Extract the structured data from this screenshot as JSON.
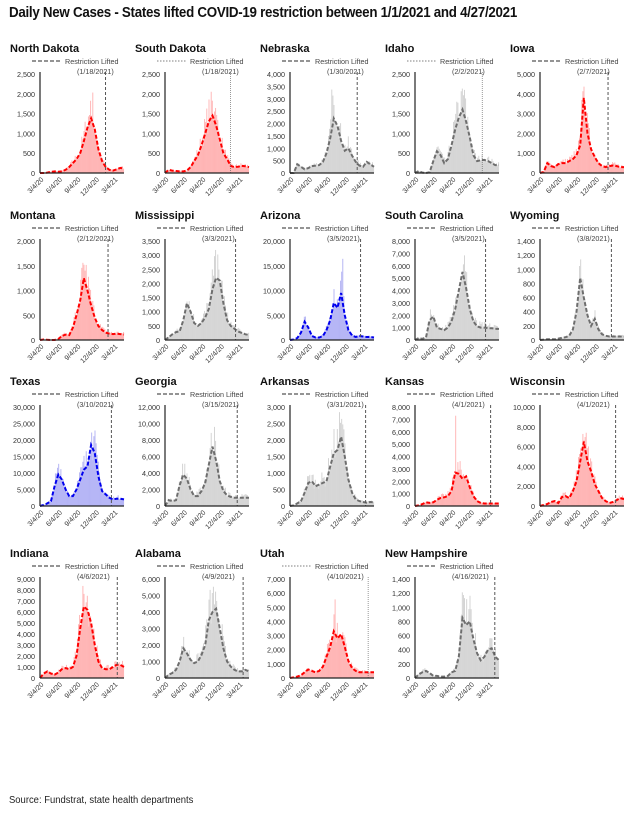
{
  "page": {
    "title": "Daily New Cases -  States lifted COVID-19 restriction between 1/1/2021 and 4/27/2021",
    "source": "Source: Fundstrat, state health departments"
  },
  "colors": {
    "red_line": "#ff0000",
    "red_fill": "#ffb3b3",
    "red_bar": "#ff9d9d",
    "blue_line": "#0000ee",
    "blue_fill": "#b3b3f5",
    "blue_bar": "#9b9bf0",
    "gray_line": "#6e6e6e",
    "gray_fill": "#d6d6d6",
    "gray_bar": "#c4c4c4",
    "axis": "#222222",
    "restriction_line": "#555555"
  },
  "legend_label": "Restriction Lifted",
  "chart_data": [
    {
      "type": "area",
      "state": "North Dakota",
      "lifted": "(1/18/2021)",
      "color": "red",
      "ylim": [
        0,
        2500
      ],
      "yticks": [
        "2,500",
        "2,000",
        "1,500",
        "1,000",
        "500",
        "0"
      ],
      "xticks": [
        "3/4/20",
        "6/4/20",
        "9/4/20",
        "12/4/20",
        "3/4/21"
      ],
      "lift_frac": 0.78,
      "peak_spike": 2250,
      "series": [
        {
          "name": "7-day average",
          "values": [
            0,
            0,
            10,
            30,
            40,
            30,
            40,
            80,
            150,
            250,
            350,
            500,
            800,
            1150,
            1380,
            1100,
            600,
            300,
            150,
            80,
            60,
            90,
            130,
            110
          ]
        }
      ]
    },
    {
      "type": "area",
      "state": "South Dakota",
      "lifted": "(1/18/2021)",
      "color": "red",
      "ylim": [
        0,
        2500
      ],
      "yticks": [
        "2,500",
        "2,000",
        "1,500",
        "1,000",
        "500",
        "0"
      ],
      "xticks": [
        "3/4/20",
        "6/4/20",
        "9/4/20",
        "12/4/20",
        "3/4/21"
      ],
      "lift_frac": 0.78,
      "peak_spike": 2150,
      "series": [
        {
          "name": "7-day average",
          "values": [
            0,
            80,
            60,
            50,
            40,
            40,
            60,
            150,
            300,
            450,
            700,
            1000,
            1300,
            1450,
            1200,
            850,
            500,
            350,
            180,
            150,
            160,
            180,
            170,
            150
          ]
        }
      ]
    },
    {
      "type": "area",
      "state": "Nebraska",
      "lifted": "(1/30/2021)",
      "color": "gray",
      "ylim": [
        0,
        4000
      ],
      "yticks": [
        "4,000",
        "3,500",
        "3,000",
        "2,500",
        "2,000",
        "1,500",
        "1,000",
        "500",
        "0"
      ],
      "xticks": [
        "3/4/20",
        "6/4/20",
        "9/4/20",
        "12/4/20",
        "3/4/21"
      ],
      "lift_frac": 0.8,
      "peak_spike": 3400,
      "series": [
        {
          "name": "7-day average",
          "values": [
            0,
            0,
            350,
            250,
            150,
            200,
            280,
            300,
            320,
            450,
            800,
            1400,
            2200,
            1900,
            1300,
            900,
            1000,
            700,
            450,
            300,
            250,
            450,
            350,
            250
          ]
        }
      ]
    },
    {
      "type": "area",
      "state": "Idaho",
      "lifted": "(2/2/2021)",
      "color": "gray",
      "ylim": [
        0,
        2500
      ],
      "yticks": [
        "2,500",
        "2,000",
        "1,500",
        "1,000",
        "500",
        "0"
      ],
      "xticks": [
        "3/4/20",
        "6/4/20",
        "9/4/20",
        "12/4/20",
        "3/4/21"
      ],
      "lift_frac": 0.8,
      "peak_spike": 2300,
      "series": [
        {
          "name": "7-day average",
          "values": [
            0,
            50,
            10,
            0,
            20,
            300,
            550,
            450,
            250,
            350,
            700,
            1100,
            1400,
            1600,
            1300,
            900,
            450,
            300,
            320,
            330,
            300,
            250,
            200,
            200
          ]
        }
      ]
    },
    {
      "type": "area",
      "state": "Iowa",
      "lifted": "(2/7/2021)",
      "color": "red",
      "ylim": [
        0,
        5000
      ],
      "yticks": [
        "5,000",
        "4,000",
        "3,000",
        "2,000",
        "1,000",
        "0"
      ],
      "xticks": [
        "3/4/20",
        "6/4/20",
        "9/4/20",
        "12/4/20",
        "3/4/21"
      ],
      "lift_frac": 0.81,
      "peak_spike": 4400,
      "series": [
        {
          "name": "7-day average",
          "values": [
            0,
            50,
            500,
            350,
            300,
            450,
            500,
            500,
            600,
            700,
            900,
            1400,
            3800,
            2000,
            1200,
            800,
            500,
            350,
            300,
            350,
            380,
            350,
            300,
            300
          ]
        }
      ]
    },
    {
      "type": "area",
      "state": "Montana",
      "lifted": "(2/12/2021)",
      "color": "red",
      "ylim": [
        0,
        2000
      ],
      "yticks": [
        "2,000",
        "1,500",
        "1,000",
        "500",
        "0"
      ],
      "xticks": [
        "3/4/20",
        "6/4/20",
        "9/4/20",
        "12/4/20",
        "3/4/21"
      ],
      "lift_frac": 0.81,
      "peak_spike": 1620,
      "series": [
        {
          "name": "7-day average",
          "values": [
            0,
            10,
            5,
            0,
            0,
            20,
            80,
            110,
            100,
            250,
            500,
            800,
            1250,
            1000,
            700,
            450,
            280,
            200,
            150,
            130,
            120,
            130,
            120,
            110
          ]
        }
      ]
    },
    {
      "type": "area",
      "state": "Mississippi",
      "lifted": "(3/3/2021)",
      "color": "gray",
      "ylim": [
        0,
        3500
      ],
      "yticks": [
        "3,500",
        "3,000",
        "2,500",
        "2,000",
        "1,500",
        "1,000",
        "500",
        "0"
      ],
      "xticks": [
        "3/4/20",
        "6/4/20",
        "9/4/20",
        "12/4/20",
        "3/4/21"
      ],
      "lift_frac": 0.84,
      "peak_spike": 3200,
      "series": [
        {
          "name": "7-day average",
          "values": [
            0,
            100,
            200,
            280,
            300,
            700,
            1300,
            1000,
            600,
            500,
            600,
            800,
            1100,
            1800,
            2200,
            2100,
            1300,
            700,
            500,
            400,
            300,
            250,
            200,
            180
          ]
        }
      ]
    },
    {
      "type": "area",
      "state": "Arizona",
      "lifted": "(3/5/2021)",
      "color": "blue",
      "ylim": [
        0,
        20000
      ],
      "yticks": [
        "20,000",
        "15,000",
        "10,000",
        "5,000",
        "0"
      ],
      "xticks": [
        "3/4/20",
        "6/4/20",
        "9/4/20",
        "12/4/20",
        "3/4/21"
      ],
      "lift_frac": 0.84,
      "peak_spike": 17200,
      "series": [
        {
          "name": "7-day average",
          "values": [
            0,
            100,
            400,
            1500,
            3700,
            2500,
            800,
            500,
            500,
            800,
            2000,
            4000,
            7500,
            6500,
            9500,
            5000,
            2000,
            900,
            600,
            800,
            700,
            600,
            600,
            500
          ]
        }
      ]
    },
    {
      "type": "area",
      "state": "South Carolina",
      "lifted": "(3/5/2021)",
      "color": "gray",
      "ylim": [
        0,
        8000
      ],
      "yticks": [
        "8,000",
        "7,000",
        "6,000",
        "5,000",
        "4,000",
        "3,000",
        "2,000",
        "1,000",
        "0"
      ],
      "xticks": [
        "3/4/20",
        "6/4/20",
        "9/4/20",
        "12/4/20",
        "3/4/21"
      ],
      "lift_frac": 0.84,
      "peak_spike": 7200,
      "series": [
        {
          "name": "7-day average",
          "values": [
            0,
            150,
            100,
            200,
            1600,
            1900,
            1000,
            900,
            800,
            1000,
            1500,
            2500,
            4000,
            5500,
            4200,
            2500,
            1500,
            1100,
            1000,
            1000,
            950,
            950,
            900,
            900
          ]
        }
      ]
    },
    {
      "type": "area",
      "state": "Wyoming",
      "lifted": "(3/8/2021)",
      "color": "gray",
      "ylim": [
        0,
        1400
      ],
      "yticks": [
        "1,400",
        "1,200",
        "1,000",
        "800",
        "600",
        "400",
        "200",
        "0"
      ],
      "xticks": [
        "3/4/20",
        "6/4/20",
        "9/4/20",
        "12/4/20",
        "3/4/21"
      ],
      "lift_frac": 0.85,
      "peak_spike": 1250,
      "series": [
        {
          "name": "7-day average",
          "values": [
            0,
            5,
            10,
            10,
            10,
            20,
            30,
            40,
            60,
            150,
            400,
            880,
            600,
            350,
            200,
            300,
            150,
            80,
            60,
            50,
            50,
            50,
            50,
            50
          ]
        }
      ]
    },
    {
      "type": "area",
      "state": "Texas",
      "lifted": "(3/10/2021)",
      "color": "blue",
      "ylim": [
        0,
        30000
      ],
      "yticks": [
        "30,000",
        "25,000",
        "20,000",
        "15,000",
        "10,000",
        "5,000",
        "0"
      ],
      "xticks": [
        "3/4/20",
        "6/4/20",
        "9/4/20",
        "12/4/20",
        "3/4/21"
      ],
      "lift_frac": 0.85,
      "peak_spike": 26500,
      "series": [
        {
          "name": "7-day average",
          "values": [
            0,
            300,
            800,
            1500,
            6000,
            9500,
            8000,
            5000,
            3000,
            3000,
            5000,
            8000,
            11000,
            12000,
            18500,
            16000,
            9000,
            4500,
            3500,
            2500,
            2000,
            2200,
            2200,
            2000
          ]
        }
      ]
    },
    {
      "type": "area",
      "state": "Georgia",
      "lifted": "(3/15/2021)",
      "color": "gray",
      "ylim": [
        0,
        12000
      ],
      "yticks": [
        "12,000",
        "10,000",
        "8,000",
        "6,000",
        "4,000",
        "2,000",
        "0"
      ],
      "xticks": [
        "3/4/20",
        "6/4/20",
        "9/4/20",
        "12/4/20",
        "3/4/21"
      ],
      "lift_frac": 0.86,
      "peak_spike": 10300,
      "series": [
        {
          "name": "7-day average",
          "values": [
            0,
            700,
            600,
            700,
            2500,
            3800,
            3300,
            2000,
            1200,
            1200,
            1800,
            2800,
            5000,
            7200,
            5500,
            3000,
            1800,
            1300,
            1100,
            1000,
            1000,
            1000,
            1000,
            1000
          ]
        }
      ]
    },
    {
      "type": "area",
      "state": "Arkansas",
      "lifted": "(3/31/2021)",
      "color": "gray",
      "ylim": [
        0,
        3000
      ],
      "yticks": [
        "3,000",
        "2,500",
        "2,000",
        "1,500",
        "1,000",
        "500",
        "0"
      ],
      "xticks": [
        "3/4/20",
        "6/4/20",
        "9/4/20",
        "12/4/20",
        "3/4/21"
      ],
      "lift_frac": 0.9,
      "peak_spike": 2850,
      "series": [
        {
          "name": "7-day average",
          "values": [
            0,
            20,
            80,
            150,
            400,
            700,
            750,
            600,
            650,
            700,
            750,
            1200,
            1600,
            1700,
            2100,
            1500,
            800,
            400,
            200,
            150,
            120,
            100,
            120,
            110
          ]
        }
      ]
    },
    {
      "type": "area",
      "state": "Kansas",
      "lifted": "(4/1/2021)",
      "color": "red",
      "ylim": [
        0,
        8000
      ],
      "yticks": [
        "8,000",
        "7,000",
        "6,000",
        "5,000",
        "4,000",
        "3,000",
        "2,000",
        "1,000",
        "0"
      ],
      "xticks": [
        "3/4/20",
        "6/4/20",
        "9/4/20",
        "12/4/20",
        "3/4/21"
      ],
      "lift_frac": 0.9,
      "peak_spike": 7500,
      "series": [
        {
          "name": "7-day average",
          "values": [
            0,
            50,
            150,
            300,
            250,
            300,
            500,
            650,
            700,
            800,
            1200,
            2700,
            2600,
            2200,
            2400,
            1500,
            800,
            400,
            250,
            200,
            200,
            200,
            200,
            200
          ]
        }
      ]
    },
    {
      "type": "area",
      "state": "Wisconsin",
      "lifted": "(4/1/2021)",
      "color": "red",
      "ylim": [
        0,
        10000
      ],
      "yticks": [
        "10,000",
        "8,000",
        "6,000",
        "4,000",
        "2,000",
        "0"
      ],
      "xticks": [
        "3/4/20",
        "6/4/20",
        "9/4/20",
        "12/4/20",
        "3/4/21"
      ],
      "lift_frac": 0.9,
      "peak_spike": 7900,
      "series": [
        {
          "name": "7-day average",
          "values": [
            0,
            100,
            200,
            400,
            500,
            300,
            900,
            1000,
            800,
            1500,
            2500,
            4500,
            6500,
            4500,
            3500,
            2200,
            1500,
            800,
            500,
            300,
            400,
            600,
            800,
            700
          ]
        }
      ]
    },
    {
      "type": "area",
      "state": "Indiana",
      "lifted": "(4/6/2021)",
      "color": "red",
      "ylim": [
        0,
        9000
      ],
      "yticks": [
        "9,000",
        "8,000",
        "7,000",
        "6,000",
        "5,000",
        "4,000",
        "3,000",
        "2,000",
        "1,000",
        "0"
      ],
      "xticks": [
        "3/4/20",
        "6/4/20",
        "9/4/20",
        "12/4/20",
        "3/4/21"
      ],
      "lift_frac": 0.92,
      "peak_spike": 8500,
      "series": [
        {
          "name": "7-day average",
          "values": [
            0,
            400,
            600,
            400,
            300,
            500,
            800,
            900,
            800,
            1000,
            2000,
            4500,
            6500,
            6200,
            5000,
            3000,
            1500,
            900,
            800,
            800,
            1000,
            1200,
            1200,
            1000
          ]
        }
      ]
    },
    {
      "type": "area",
      "state": "Alabama",
      "lifted": "(4/9/2021)",
      "color": "gray",
      "ylim": [
        0,
        6000
      ],
      "yticks": [
        "6,000",
        "5,000",
        "4,000",
        "3,000",
        "2,000",
        "1,000",
        "0"
      ],
      "xticks": [
        "3/4/20",
        "6/4/20",
        "9/4/20",
        "12/4/20",
        "3/4/21"
      ],
      "lift_frac": 0.93,
      "peak_spike": 5400,
      "series": [
        {
          "name": "7-day average",
          "values": [
            0,
            200,
            300,
            500,
            1000,
            1800,
            1500,
            1100,
            900,
            1000,
            1400,
            2000,
            3500,
            4000,
            4200,
            3000,
            1800,
            1000,
            700,
            500,
            400,
            400,
            500,
            400
          ]
        }
      ]
    },
    {
      "type": "area",
      "state": "Utah",
      "lifted": "(4/10/2021)",
      "color": "red",
      "ylim": [
        0,
        7000
      ],
      "yticks": [
        "7,000",
        "6,000",
        "5,000",
        "4,000",
        "3,000",
        "2,000",
        "1,000",
        "0"
      ],
      "xticks": [
        "3/4/20",
        "6/4/20",
        "9/4/20",
        "12/4/20",
        "3/4/21"
      ],
      "lift_frac": 0.93,
      "peak_spike": 6100,
      "series": [
        {
          "name": "7-day average",
          "values": [
            0,
            50,
            100,
            200,
            400,
            600,
            500,
            400,
            500,
            800,
            1500,
            2200,
            3300,
            2800,
            3100,
            2200,
            1200,
            700,
            500,
            400,
            400,
            400,
            400,
            400
          ]
        }
      ]
    },
    {
      "type": "area",
      "state": "New Hampshire",
      "lifted": "(4/16/2021)",
      "color": "gray",
      "ylim": [
        0,
        1400
      ],
      "yticks": [
        "1,400",
        "1,200",
        "1,000",
        "800",
        "600",
        "400",
        "200",
        "0"
      ],
      "xticks": [
        "3/4/20",
        "6/4/20",
        "9/4/20",
        "12/4/20",
        "3/4/21"
      ],
      "lift_frac": 0.95,
      "peak_spike": 1250,
      "series": [
        {
          "name": "7-day average",
          "values": [
            0,
            50,
            80,
            100,
            70,
            30,
            30,
            20,
            20,
            30,
            80,
            100,
            300,
            850,
            750,
            800,
            550,
            350,
            250,
            300,
            400,
            420,
            300,
            250
          ]
        }
      ]
    }
  ]
}
